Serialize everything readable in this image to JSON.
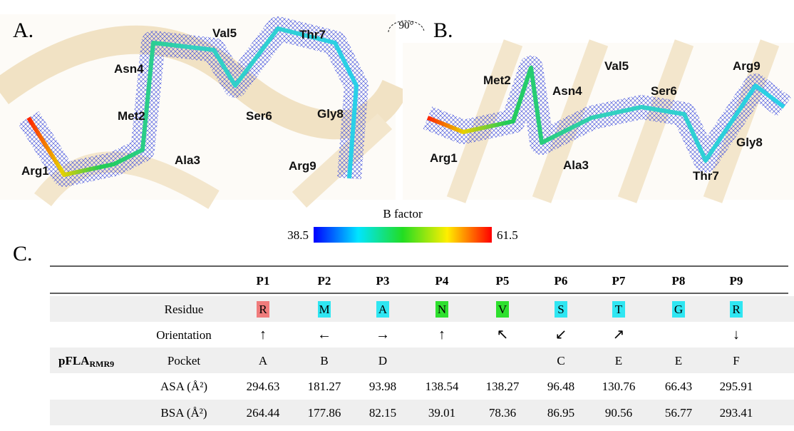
{
  "panel_a": {
    "label": "A.",
    "residues": [
      "Arg1",
      "Met2",
      "Ala3",
      "Asn4",
      "Val5",
      "Ser6",
      "Thr7",
      "Gly8",
      "Arg9"
    ]
  },
  "panel_b": {
    "label": "B.",
    "rotation": "90°",
    "residues": [
      "Arg1",
      "Met2",
      "Ala3",
      "Asn4",
      "Val5",
      "Ser6",
      "Thr7",
      "Gly8",
      "Arg9"
    ]
  },
  "colorbar": {
    "title": "B factor",
    "min": 38.5,
    "max": 61.5
  },
  "panel_c": {
    "label": "C.",
    "table": {
      "group_label": "pFLA",
      "group_label_sub": "RMR9",
      "columns": [
        "P1",
        "P2",
        "P3",
        "P4",
        "P5",
        "P6",
        "P7",
        "P8",
        "P9"
      ],
      "rows": [
        {
          "label": "Residue",
          "cells": [
            "R",
            "M",
            "A",
            "N",
            "V",
            "S",
            "T",
            "G",
            "R"
          ],
          "colors": [
            "#f07c7c",
            "#2fe6f2",
            "#2fe6f2",
            "#2ee02e",
            "#2ee02e",
            "#2fe6f2",
            "#2fe6f2",
            "#2fe6f2",
            "#2fe6f2"
          ]
        },
        {
          "label": "Orientation",
          "cells": [
            "↑",
            "←",
            "→",
            "↑",
            "↖",
            "↙",
            "↗",
            null,
            "↓"
          ]
        },
        {
          "label": "Pocket",
          "cells": [
            "A",
            "B",
            "D",
            null,
            null,
            "C",
            "E",
            "E",
            "F"
          ]
        },
        {
          "label": "ASA (Å²)",
          "cells": [
            294.63,
            181.27,
            93.98,
            138.54,
            138.27,
            96.48,
            130.76,
            66.43,
            295.91
          ]
        },
        {
          "label": "BSA (Å²)",
          "cells": [
            264.44,
            177.86,
            82.15,
            39.01,
            78.36,
            86.95,
            90.56,
            56.77,
            293.41
          ]
        }
      ]
    }
  }
}
